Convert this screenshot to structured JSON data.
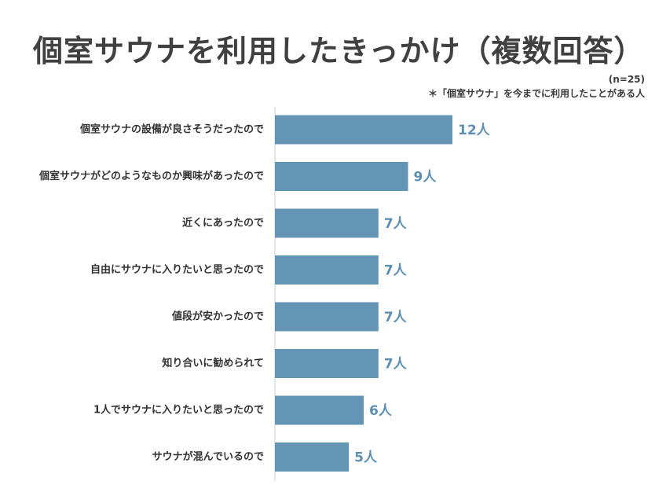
{
  "title": "個室サウナを利用したきっかけ（複数回答）",
  "sample_size": "(n=25)",
  "note": "＊「個室サウナ」を今までに利用したことがある人",
  "colors": {
    "bar": "#6495b4",
    "value_text": "#5d8fb3",
    "axis": "#cfcfcf"
  },
  "chart_data": {
    "type": "bar",
    "orientation": "horizontal",
    "unit": "人",
    "categories": [
      "個室サウナの設備が良さそうだったので",
      "個室サウナがどのようなものか興味があったので",
      "近くにあったので",
      "自由にサウナに入りたいと思ったので",
      "値段が安かったので",
      "知り合いに勧められて",
      "1人でサウナに入りたいと思ったので",
      "サウナが混んでいるので"
    ],
    "values": [
      12,
      9,
      7,
      7,
      7,
      7,
      6,
      5
    ],
    "value_labels": [
      "12人",
      "9人",
      "7人",
      "7人",
      "7人",
      "7人",
      "6人",
      "5人"
    ],
    "xlim": [
      0,
      12
    ],
    "grid": false,
    "legend": "none"
  }
}
